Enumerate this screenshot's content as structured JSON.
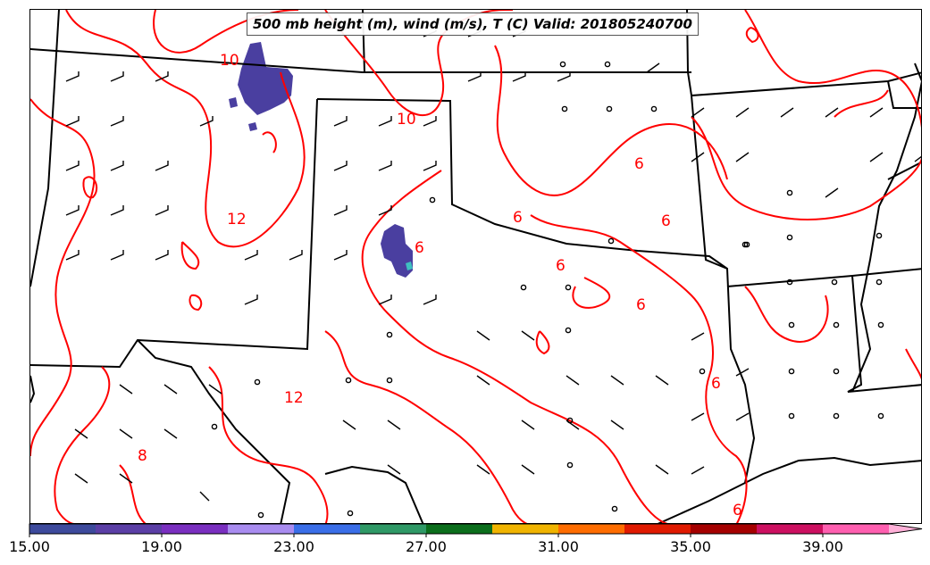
{
  "title": "500 mb height (m), wind (m/s), T (C) Valid: 201805240700",
  "contour_labels": [
    "10",
    "10",
    "12",
    "12",
    "6",
    "6",
    "6",
    "6",
    "6",
    "6",
    "6",
    "6",
    "8"
  ],
  "colorbar": {
    "tick_labels": [
      "15.00",
      "19.00",
      "23.00",
      "27.00",
      "31.00",
      "35.00",
      "39.00"
    ],
    "tick_values": [
      15,
      19,
      23,
      27,
      31,
      35,
      39
    ],
    "range": [
      15,
      42
    ],
    "bin_width": 2,
    "colors": [
      "#3d4a9c",
      "#5b3fa6",
      "#7a2fc0",
      "#a98cf0",
      "#3a6ee8",
      "#2f9966",
      "#0b6e1c",
      "#f0b400",
      "#ff6d00",
      "#e01a00",
      "#a50000",
      "#cc1060",
      "#ff5fb0",
      "#ffb0d8"
    ]
  },
  "colors": {
    "contour": "#ff0000",
    "borders": "#000000",
    "shaded_region": "#4a3fa0"
  }
}
